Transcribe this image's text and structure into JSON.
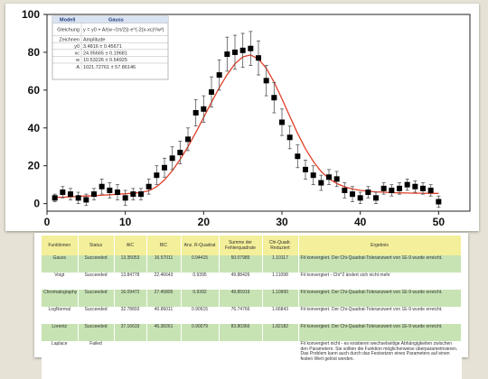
{
  "chart_data": {
    "type": "scatter",
    "x": [
      1,
      2,
      3,
      4,
      5,
      6,
      7,
      8,
      9,
      10,
      11,
      12,
      13,
      14,
      15,
      16,
      17,
      18,
      19,
      20,
      21,
      22,
      23,
      24,
      25,
      26,
      27,
      28,
      29,
      30,
      31,
      32,
      33,
      34,
      35,
      36,
      37,
      38,
      39,
      40,
      41,
      42,
      43,
      44,
      45,
      46,
      47,
      48,
      49,
      50
    ],
    "y": [
      3,
      6,
      5,
      3,
      2,
      5,
      9,
      7,
      6,
      3,
      5,
      5,
      9,
      15,
      19,
      24,
      27,
      34,
      48,
      50,
      59,
      68,
      79,
      80,
      81,
      82,
      77,
      65,
      56,
      43,
      35,
      25,
      18,
      15,
      11,
      14,
      13,
      7,
      5,
      3,
      6,
      3,
      8,
      7,
      8,
      10,
      9,
      8,
      7,
      1
    ],
    "err": [
      2,
      3,
      3,
      3,
      3,
      3,
      4,
      4,
      4,
      4,
      3,
      3,
      4,
      5,
      5,
      6,
      6,
      6,
      7,
      7,
      8,
      8,
      9,
      9,
      9,
      9,
      9,
      8,
      8,
      7,
      6,
      6,
      5,
      5,
      4,
      4,
      4,
      4,
      4,
      3,
      3,
      3,
      3,
      3,
      3,
      3,
      3,
      3,
      3,
      3
    ],
    "fit": [
      3.2,
      3.4,
      3.6,
      3.8,
      4.0,
      4.2,
      4.4,
      4.7,
      4.9,
      5.2,
      5.5,
      5.9,
      6.8,
      8.9,
      12.5,
      17.4,
      23.3,
      30.1,
      37.6,
      45.5,
      53.6,
      61.3,
      68.2,
      73.9,
      77.6,
      78.6,
      76.5,
      71.5,
      64.2,
      55.4,
      46.1,
      37.1,
      29.0,
      22.3,
      17.0,
      13.2,
      10.6,
      8.9,
      7.7,
      7.0,
      6.5,
      6.2,
      6.0,
      5.8,
      5.7,
      5.6,
      5.5,
      5.5,
      5.4,
      5.4
    ],
    "xlim": [
      0,
      54
    ],
    "ylim": [
      -4,
      100
    ],
    "x_ticks": [
      0,
      10,
      20,
      30,
      40,
      50
    ],
    "y_ticks": [
      0,
      20,
      40,
      60,
      80,
      100
    ],
    "title": "",
    "xlabel": "",
    "ylabel": "",
    "legend_placement": "top-left",
    "colors": {
      "points": "#000000",
      "fit": "#e0402a"
    }
  },
  "legend": {
    "header": [
      "Modell",
      "Gauss"
    ],
    "rows": [
      [
        "Gleichung",
        "y = y0 + A/(w·√(π/2))·e^(-2(x-xc)²/w²)"
      ],
      [
        "Zeichnen",
        "Amplitude"
      ],
      [
        "y0",
        "3.4816 ± 0.45671"
      ],
      [
        "xc",
        "24.95665 ± 0.19681"
      ],
      [
        "w",
        "10.53226 ± 0.54925"
      ],
      [
        "A",
        "1021.72761 ± 57.86146"
      ]
    ]
  },
  "table": {
    "headers": [
      "Funktionen",
      "Status",
      "AIC",
      "BIC",
      "Anz. R-Quadrat",
      "Summe der Fehlerquadrate",
      "Chi-Quadr. Reduziert",
      "Ergebnis"
    ],
    "rows": [
      [
        "Gauss",
        "Succeeded",
        "13.35053",
        "16.57011",
        "0.94415",
        "50.07985",
        "1.10117",
        "Fit konvergiert. Der Chi-Quadrat-Toleranzwert von 1E-9 wurde erreicht."
      ],
      [
        "Voigt",
        "Succeeded",
        "13.84778",
        "22.46643",
        "0.9395",
        "49.88426",
        "1.11098",
        "Fit konvergiert - Chi^2 ändert sich nicht mehr"
      ],
      [
        "Chromatography",
        "Succeeded",
        "16.09472",
        "27.45895",
        "0.9392",
        "49.85919",
        "1.10900",
        "Fit konvergiert. Der Chi-Quadrat-Toleranzwert von 1E-9 wurde erreicht."
      ],
      [
        "LogNormal",
        "Succeeded",
        "32.78893",
        "40.86011",
        "0.90915",
        "76.74766",
        "1.66843",
        "Fit konvergiert. Der Chi-Quadrat-Toleranzwert von 1E-9 wurde erreicht."
      ],
      [
        "Lorentz",
        "Succeeded",
        "37.16633",
        "46.38261",
        "0.90079",
        "83.80366",
        "1.82182",
        "Fit konvergiert. Der Chi-Quadrat-Toleranzwert von 1E-9 wurde erreicht."
      ],
      [
        "Laplace",
        "Failed",
        "",
        "",
        "",
        "",
        "",
        "Fit konvergiert nicht - es existieren wechselseitige Abhängigkeiten zwischen den Parametern. Sie sollten die Funktion möglicherweise überparametrisieren. Das Problem kann auch durch das Festsetzen eines Parameters auf einen festen Wert gelöst werden."
      ]
    ]
  }
}
